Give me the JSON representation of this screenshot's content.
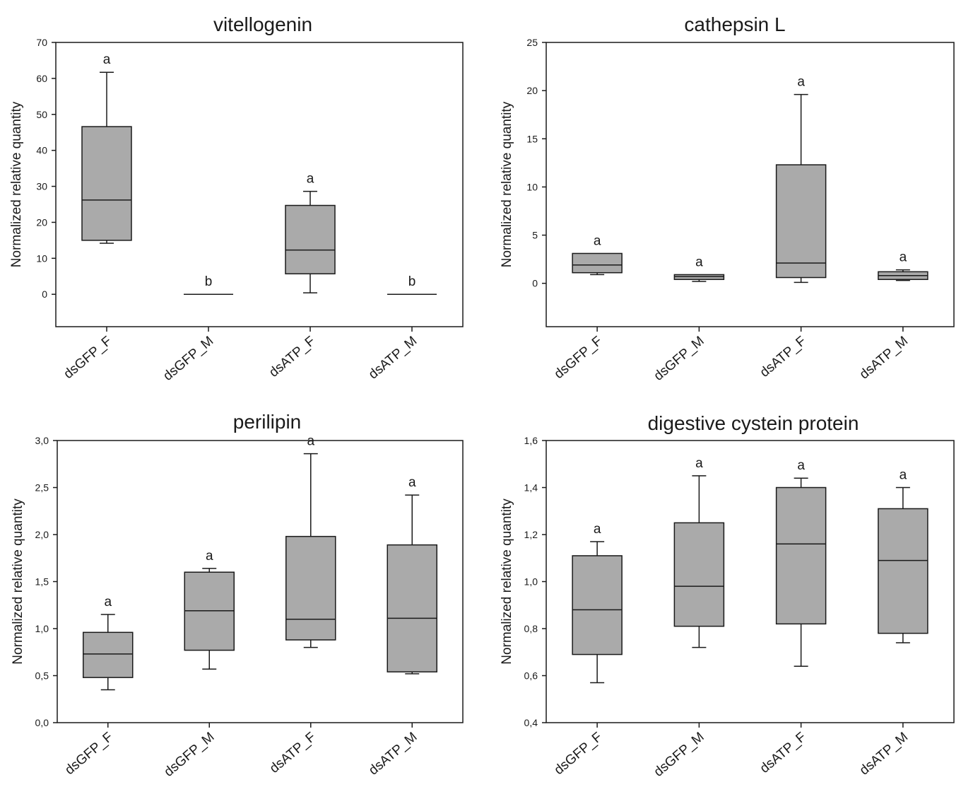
{
  "chart_data": [
    {
      "type": "box",
      "title": "vitellogenin",
      "ylabel": "Normalized relative quantity",
      "ylim": [
        -9,
        70
      ],
      "yticks": [
        0,
        10,
        20,
        30,
        40,
        50,
        60,
        70
      ],
      "ytick_labels": [
        "0",
        "10",
        "20",
        "30",
        "40",
        "50",
        "60",
        "70"
      ],
      "categories": [
        "dsGFP_F",
        "dsGFP_M",
        "dsATP_F",
        "dsATP_M"
      ],
      "boxes": [
        {
          "min": 14.2,
          "q1": 15.0,
          "median": 26.2,
          "q3": 46.6,
          "max": 61.7,
          "letter": "a"
        },
        {
          "min": 0.0,
          "q1": 0.0,
          "median": 0.0,
          "q3": 0.0,
          "max": 0.0,
          "letter": "b"
        },
        {
          "min": 0.4,
          "q1": 5.7,
          "median": 12.3,
          "q3": 24.7,
          "max": 28.6,
          "letter": "a"
        },
        {
          "min": 0.0,
          "q1": 0.0,
          "median": 0.0,
          "q3": 0.0,
          "max": 0.0,
          "letter": "b"
        }
      ]
    },
    {
      "type": "box",
      "title": "cathepsin L",
      "ylabel": "Normalized relative quantity",
      "ylim": [
        -4.5,
        25
      ],
      "yticks": [
        0,
        5,
        10,
        15,
        20,
        25
      ],
      "ytick_labels": [
        "0",
        "5",
        "10",
        "15",
        "20",
        "25"
      ],
      "categories": [
        "dsGFP_F",
        "dsGFP_M",
        "dsATP_F",
        "dsATP_M"
      ],
      "boxes": [
        {
          "min": 0.9,
          "q1": 1.1,
          "median": 1.9,
          "q3": 3.1,
          "max": 3.1,
          "letter": "a"
        },
        {
          "min": 0.2,
          "q1": 0.4,
          "median": 0.7,
          "q3": 0.9,
          "max": 0.9,
          "letter": "a"
        },
        {
          "min": 0.1,
          "q1": 0.6,
          "median": 2.1,
          "q3": 12.3,
          "max": 19.6,
          "letter": "a"
        },
        {
          "min": 0.3,
          "q1": 0.4,
          "median": 0.8,
          "q3": 1.2,
          "max": 1.4,
          "letter": "a"
        }
      ]
    },
    {
      "type": "box",
      "title": "perilipin",
      "ylabel": "Normalized relative quantity",
      "ylim": [
        0,
        3.0
      ],
      "yticks": [
        0,
        0.5,
        1.0,
        1.5,
        2.0,
        2.5,
        3.0
      ],
      "ytick_labels": [
        "0,0",
        "0,5",
        "1,0",
        "1,5",
        "2,0",
        "2,5",
        "3,0"
      ],
      "categories": [
        "dsGFP_F",
        "dsGFP_M",
        "dsATP_F",
        "dsATP_M"
      ],
      "boxes": [
        {
          "min": 0.35,
          "q1": 0.48,
          "median": 0.73,
          "q3": 0.96,
          "max": 1.15,
          "letter": "a"
        },
        {
          "min": 0.57,
          "q1": 0.77,
          "median": 1.19,
          "q3": 1.6,
          "max": 1.64,
          "letter": "a"
        },
        {
          "min": 0.8,
          "q1": 0.88,
          "median": 1.1,
          "q3": 1.98,
          "max": 2.86,
          "letter": "a"
        },
        {
          "min": 0.52,
          "q1": 0.54,
          "median": 1.11,
          "q3": 1.89,
          "max": 2.42,
          "letter": "a"
        }
      ]
    },
    {
      "type": "box",
      "title": "digestive cystein protein",
      "ylabel": "Normalized relative quantity",
      "ylim": [
        0.4,
        1.6
      ],
      "yticks": [
        0.4,
        0.6,
        0.8,
        1.0,
        1.2,
        1.4,
        1.6
      ],
      "ytick_labels": [
        "0,4",
        "0,6",
        "0,8",
        "1,0",
        "1,2",
        "1,4",
        "1,6"
      ],
      "categories": [
        "dsGFP_F",
        "dsGFP_M",
        "dsATP_F",
        "dsATP_M"
      ],
      "boxes": [
        {
          "min": 0.57,
          "q1": 0.69,
          "median": 0.88,
          "q3": 1.11,
          "max": 1.17,
          "letter": "a"
        },
        {
          "min": 0.72,
          "q1": 0.81,
          "median": 0.98,
          "q3": 1.25,
          "max": 1.45,
          "letter": "a"
        },
        {
          "min": 0.64,
          "q1": 0.82,
          "median": 1.16,
          "q3": 1.4,
          "max": 1.44,
          "letter": "a"
        },
        {
          "min": 0.74,
          "q1": 0.78,
          "median": 1.09,
          "q3": 1.31,
          "max": 1.4,
          "letter": "a"
        }
      ]
    }
  ]
}
